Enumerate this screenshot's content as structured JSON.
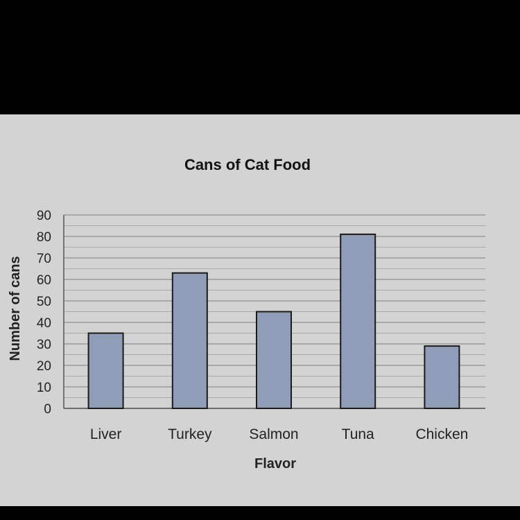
{
  "chart_data": {
    "type": "bar",
    "title": "Cans of Cat Food",
    "xlabel": "Flavor",
    "ylabel": "Number of cans",
    "categories": [
      "Liver",
      "Turkey",
      "Salmon",
      "Tuna",
      "Chicken"
    ],
    "values": [
      35,
      63,
      45,
      81,
      29
    ],
    "ylim": [
      0,
      90
    ],
    "yticks": [
      "0",
      "10",
      "20",
      "30",
      "40",
      "50",
      "60",
      "70",
      "80",
      "90"
    ],
    "grid": true,
    "legend": "none",
    "colors": {
      "bar": "#8f9db8",
      "bar_stroke": "#1a1a1a",
      "grid": "#9a9a9a",
      "background": "#d3d3d3"
    }
  }
}
